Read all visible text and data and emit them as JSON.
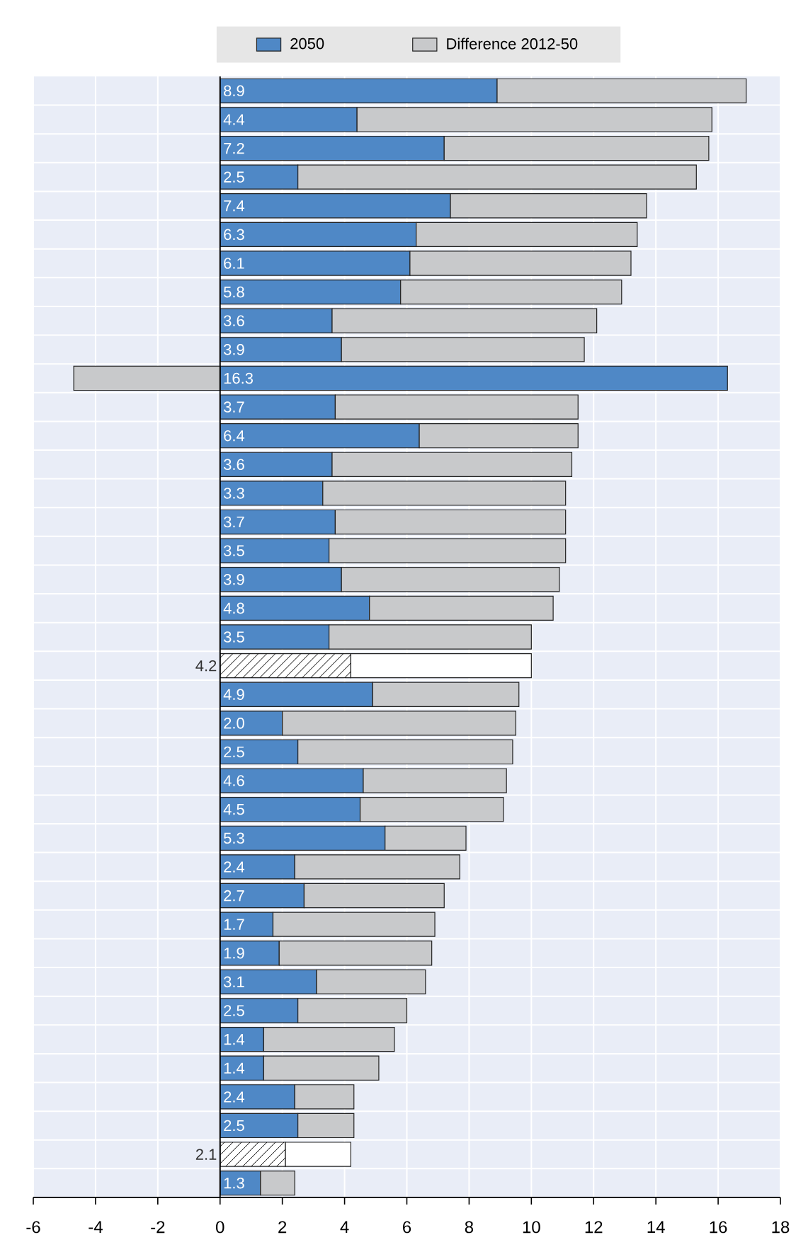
{
  "chart_data": {
    "type": "bar",
    "orientation": "horizontal",
    "stacked": true,
    "categories": [
      null,
      null,
      null,
      null,
      null,
      null,
      null,
      null,
      null,
      null,
      null,
      null,
      null,
      null,
      null,
      null,
      null,
      null,
      null,
      null,
      null,
      null,
      null,
      null,
      null,
      null,
      null,
      null,
      null,
      null,
      null,
      null,
      null,
      null,
      null,
      null,
      null,
      null,
      null
    ],
    "series": [
      {
        "name": "2050",
        "color": "#4f88c6",
        "values": [
          8.9,
          4.4,
          7.2,
          2.5,
          7.4,
          6.3,
          6.1,
          5.8,
          3.6,
          3.9,
          16.3,
          3.7,
          6.4,
          3.6,
          3.3,
          3.7,
          3.5,
          3.9,
          4.8,
          3.5,
          4.2,
          4.9,
          2.0,
          2.5,
          4.6,
          4.5,
          5.3,
          2.4,
          2.7,
          1.7,
          1.9,
          3.1,
          2.5,
          1.4,
          1.4,
          2.4,
          2.5,
          2.1,
          1.3
        ],
        "colors": [
          "#4f88c6",
          "#4f88c6",
          "#4f88c6",
          "#4f88c6",
          "#4f88c6",
          "#4f88c6",
          "#4f88c6",
          "#4f88c6",
          "#4f88c6",
          "#4f88c6",
          "#4f88c6",
          "#4f88c6",
          "#4f88c6",
          "#4f88c6",
          "#4f88c6",
          "#4f88c6",
          "#4f88c6",
          "#4f88c6",
          "#4f88c6",
          "#4f88c6",
          "#ffffff",
          "#4f88c6",
          "#4f88c6",
          "#4f88c6",
          "#4f88c6",
          "#4f88c6",
          "#4f88c6",
          "#4f88c6",
          "#4f88c6",
          "#4f88c6",
          "#4f88c6",
          "#4f88c6",
          "#4f88c6",
          "#4f88c6",
          "#4f88c6",
          "#4f88c6",
          "#4f88c6",
          "#ffffff",
          "#4f88c6"
        ],
        "value_labels": [
          "8.9",
          "4.4",
          "7.2",
          "2.5",
          "7.4",
          "6.3",
          "6.1",
          "5.8",
          "3.6",
          "3.9",
          "16.3",
          "3.7",
          "6.4",
          "3.6",
          "3.3",
          "3.7",
          "3.5",
          "3.9",
          "4.8",
          "3.5",
          "4.2",
          "4.9",
          "2.0",
          "2.5",
          "4.6",
          "4.5",
          "5.3",
          "2.4",
          "2.7",
          "1.7",
          "1.9",
          "3.1",
          "2.5",
          "1.4",
          "1.4",
          "2.4",
          "2.5",
          "2.1",
          "1.3"
        ]
      },
      {
        "name": "Difference 2012-50",
        "color": "#c8c9cb",
        "values": [
          8.0,
          11.4,
          8.5,
          12.8,
          6.3,
          7.1,
          7.1,
          7.1,
          8.5,
          7.8,
          -4.7,
          7.8,
          5.1,
          7.7,
          7.8,
          7.4,
          7.6,
          7.0,
          5.9,
          6.5,
          5.8,
          4.7,
          7.5,
          6.9,
          4.6,
          4.6,
          2.6,
          5.3,
          4.5,
          5.2,
          4.9,
          3.5,
          3.5,
          4.2,
          3.7,
          1.9,
          1.8,
          2.1,
          1.1
        ],
        "colors": [
          "#c8c9cb",
          "#c8c9cb",
          "#c8c9cb",
          "#c8c9cb",
          "#c8c9cb",
          "#c8c9cb",
          "#c8c9cb",
          "#c8c9cb",
          "#c8c9cb",
          "#c8c9cb",
          "#c8c9cb",
          "#c8c9cb",
          "#c8c9cb",
          "#c8c9cb",
          "#c8c9cb",
          "#c8c9cb",
          "#c8c9cb",
          "#c8c9cb",
          "#c8c9cb",
          "#c8c9cb",
          "#ffffff",
          "#c8c9cb",
          "#c8c9cb",
          "#c8c9cb",
          "#c8c9cb",
          "#c8c9cb",
          "#c8c9cb",
          "#c8c9cb",
          "#c8c9cb",
          "#c8c9cb",
          "#c8c9cb",
          "#c8c9cb",
          "#c8c9cb",
          "#c8c9cb",
          "#c8c9cb",
          "#c8c9cb",
          "#c8c9cb",
          "#ffffff",
          "#c8c9cb"
        ]
      }
    ],
    "xlim": [
      -6,
      18
    ],
    "xticks": [
      -6,
      -4,
      -2,
      0,
      2,
      4,
      6,
      8,
      10,
      12,
      14,
      16,
      18
    ],
    "grid": true,
    "legend": "top",
    "tick_labels": "x"
  }
}
